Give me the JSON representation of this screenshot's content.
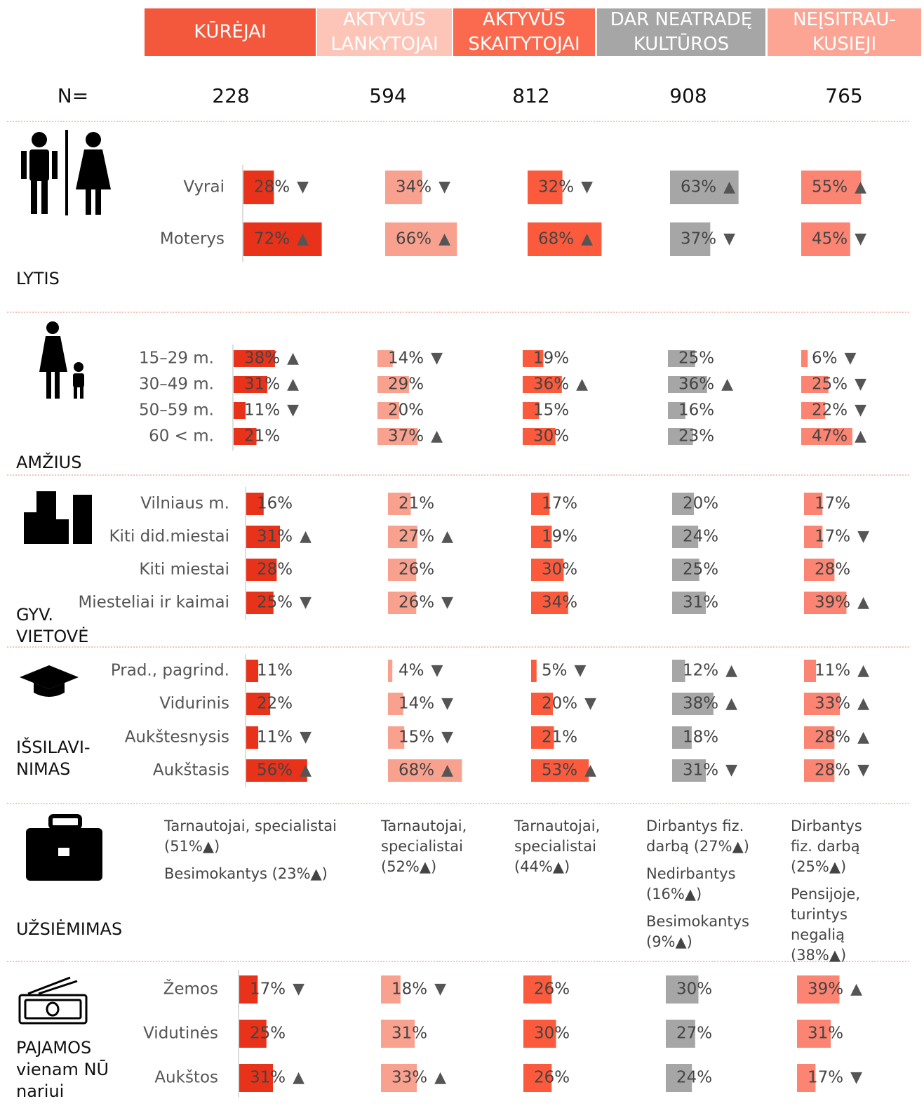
{
  "segments": [
    {
      "name": [
        "KŪRĖJAI"
      ],
      "header_color": "#f4583c",
      "color": "#e8321a"
    },
    {
      "name": [
        "AKTYVŪS",
        "LANKYTOJAI"
      ],
      "header_color": "#fdc5b8",
      "color": "#f9a18f"
    },
    {
      "name": [
        "AKTYVŪS",
        "SKAITYTOJAI"
      ],
      "header_color": "#fb6a4e",
      "color": "#fb5a3c"
    },
    {
      "name": [
        "DAR NEATRADĘ",
        "KULTŪROS"
      ],
      "header_color": "#a6a6a6",
      "color": "#a6a6a6"
    },
    {
      "name": [
        "NEĮSITRAU-",
        "KUSIEJI"
      ],
      "header_color": "#fca595",
      "color": "#fb8472"
    }
  ],
  "n_label": "N=",
  "n": [
    228,
    594,
    812,
    908,
    765
  ],
  "sections": [
    {
      "title": [
        "LYTIS"
      ],
      "rows": [
        {
          "label": "Vyrai",
          "values": [
            28,
            34,
            32,
            63,
            55
          ],
          "value_labels": [
            "28%",
            "34%",
            "32%",
            "63%",
            "55%"
          ],
          "arrows": [
            "▼",
            "▼",
            "▼",
            "▲",
            "▲"
          ]
        },
        {
          "label": "Moterys",
          "values": [
            72,
            66,
            68,
            37,
            45
          ],
          "value_labels": [
            "72%",
            "66%",
            "68%",
            "37%",
            "45%"
          ],
          "arrows": [
            "▲",
            "▲",
            "▲",
            "▼",
            "▼"
          ]
        }
      ]
    },
    {
      "title": [
        "AMŽIUS"
      ],
      "rows": [
        {
          "label": "15–29 m.",
          "values": [
            38,
            14,
            19,
            25,
            6
          ],
          "value_labels": [
            "38%",
            "14%",
            "19%",
            "25%",
            "6%"
          ],
          "arrows": [
            "▲",
            "▼",
            null,
            null,
            "▼"
          ]
        },
        {
          "label": "30–49 m.",
          "values": [
            31,
            29,
            36,
            36,
            25
          ],
          "value_labels": [
            "31%",
            "29%",
            "36%",
            "36%",
            "25%"
          ],
          "arrows": [
            "▲",
            null,
            "▲",
            "▲",
            "▼"
          ]
        },
        {
          "label": "50–59 m.",
          "values": [
            11,
            20,
            15,
            16,
            22
          ],
          "value_labels": [
            "11%",
            "20%",
            "15%",
            "16%",
            "22%"
          ],
          "arrows": [
            "▼",
            null,
            null,
            null,
            "▼"
          ]
        },
        {
          "label": "60 < m.",
          "values": [
            21,
            37,
            30,
            23,
            47
          ],
          "value_labels": [
            "21%",
            "37%",
            "30%",
            "23%",
            "47%"
          ],
          "arrows": [
            null,
            "▲",
            null,
            null,
            "▲"
          ]
        }
      ]
    },
    {
      "title": [
        "GYV.",
        "VIETOVĖ"
      ],
      "rows": [
        {
          "label": "Vilniaus m.",
          "values": [
            16,
            21,
            17,
            20,
            17
          ],
          "value_labels": [
            "16%",
            "21%",
            "17%",
            "20%",
            "17%"
          ],
          "arrows": [
            null,
            null,
            null,
            null,
            null
          ]
        },
        {
          "label": "Kiti did.miestai",
          "values": [
            31,
            27,
            19,
            24,
            17
          ],
          "value_labels": [
            "31%",
            "27%",
            "19%",
            "24%",
            "17%"
          ],
          "arrows": [
            "▲",
            "▲",
            null,
            null,
            "▼"
          ]
        },
        {
          "label": "Kiti miestai",
          "values": [
            28,
            26,
            30,
            25,
            28
          ],
          "value_labels": [
            "28%",
            "26%",
            "30%",
            "25%",
            "28%"
          ],
          "arrows": [
            null,
            null,
            null,
            null,
            null
          ]
        },
        {
          "label": "Miesteliai ir kaimai",
          "values": [
            25,
            26,
            34,
            31,
            39
          ],
          "value_labels": [
            "25%",
            "26%",
            "34%",
            "31%",
            "39%"
          ],
          "arrows": [
            "▼",
            "▼",
            null,
            null,
            "▲"
          ]
        }
      ]
    },
    {
      "title": [
        "IŠSILAVI-",
        "NIMAS"
      ],
      "rows": [
        {
          "label": "Prad., pagrind.",
          "values": [
            11,
            4,
            5,
            12,
            11
          ],
          "value_labels": [
            "11%",
            "4%",
            "5%",
            "12%",
            "11%"
          ],
          "arrows": [
            null,
            "▼",
            "▼",
            "▲",
            "▲"
          ]
        },
        {
          "label": "Vidurinis",
          "values": [
            22,
            14,
            20,
            38,
            33
          ],
          "value_labels": [
            "22%",
            "14%",
            "20%",
            "38%",
            "33%"
          ],
          "arrows": [
            null,
            "▼",
            "▼",
            "▲",
            "▲"
          ]
        },
        {
          "label": "Aukštesnysis",
          "values": [
            11,
            15,
            21,
            18,
            28
          ],
          "value_labels": [
            "11%",
            "15%",
            "21%",
            "18%",
            "28%"
          ],
          "arrows": [
            "▼",
            "▼",
            null,
            null,
            "▲"
          ]
        },
        {
          "label": "Aukštasis",
          "values": [
            56,
            68,
            53,
            31,
            28
          ],
          "value_labels": [
            "56%",
            "68%",
            "53%",
            "31%",
            "28%"
          ],
          "arrows": [
            "▲",
            "▲",
            "▲",
            "▼",
            "▼"
          ]
        }
      ]
    },
    {
      "title": [
        "UŽSIĖMIMAS"
      ],
      "items": [
        [
          "Tarnautojai, specialistai (51%▲)",
          "Besimokantys (23%▲)"
        ],
        [
          "Tarnautojai, specialistai (52%▲)"
        ],
        [
          "Tarnautojai, specialistai (44%▲)"
        ],
        [
          "Dirbantys fiz. darbą (27%▲)",
          "Nedirbantys (16%▲)",
          "Besimokantys (9%▲)"
        ],
        [
          "Dirbantys fiz. darbą (25%▲)",
          "Pensijoje, turintys negalią (38%▲)"
        ]
      ]
    },
    {
      "title": [
        "PAJAMOS",
        "vienam NŪ",
        "nariui"
      ],
      "rows": [
        {
          "label": "Žemos",
          "values": [
            17,
            18,
            26,
            30,
            39
          ],
          "value_labels": [
            "17%",
            "18%",
            "26%",
            "30%",
            "39%"
          ],
          "arrows": [
            "▼",
            "▼",
            null,
            null,
            "▲"
          ]
        },
        {
          "label": "Vidutinės",
          "values": [
            25,
            31,
            30,
            27,
            31
          ],
          "value_labels": [
            "25%",
            "31%",
            "30%",
            "27%",
            "31%"
          ],
          "arrows": [
            null,
            null,
            null,
            null,
            null
          ]
        },
        {
          "label": "Aukštos",
          "values": [
            31,
            33,
            26,
            24,
            17
          ],
          "value_labels": [
            "31%",
            "33%",
            "26%",
            "24%",
            "17%"
          ],
          "arrows": [
            "▲",
            "▲",
            null,
            null,
            "▼"
          ]
        }
      ]
    }
  ]
}
